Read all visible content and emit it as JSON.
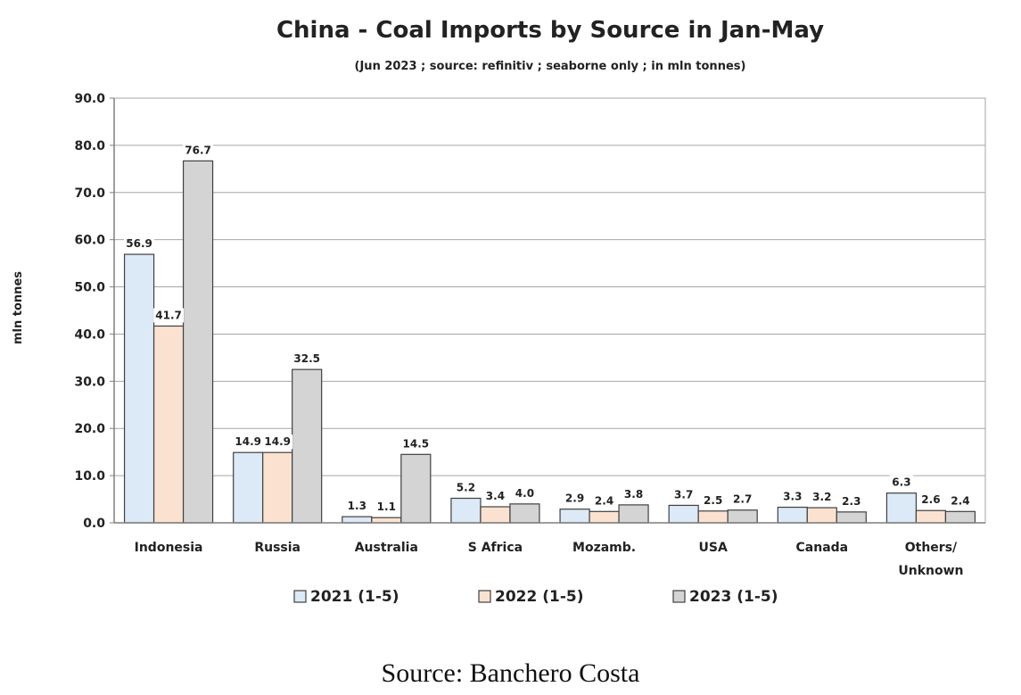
{
  "chart_data": {
    "type": "bar",
    "title": "China - Coal Imports by Source in Jan-May",
    "subtitle": "(Jun 2023 ; source: refinitiv ; seaborne only ; in mln tonnes)",
    "ylabel": "mln tonnes",
    "ylim": [
      0,
      90
    ],
    "yticks": [
      "0.0",
      "10.0",
      "20.0",
      "30.0",
      "40.0",
      "50.0",
      "60.0",
      "70.0",
      "80.0",
      "90.0"
    ],
    "grid": true,
    "legend_position": "bottom",
    "categories": [
      "Indonesia",
      "Russia",
      "Australia",
      "S Africa",
      "Mozamb.",
      "USA",
      "Canada",
      "Others/\nUnknown"
    ],
    "series": [
      {
        "name": "2021 (1-5)",
        "color": "#dce9f6",
        "values": [
          56.9,
          14.9,
          1.3,
          5.2,
          2.9,
          3.7,
          3.3,
          6.3
        ],
        "labels": [
          "56.9",
          "14.9",
          "1.3",
          "5.2",
          "2.9",
          "3.7",
          "3.3",
          "6.3"
        ]
      },
      {
        "name": "2022 (1-5)",
        "color": "#fbe2d0",
        "values": [
          41.7,
          14.9,
          1.1,
          3.4,
          2.4,
          2.5,
          3.2,
          2.6
        ],
        "labels": [
          "41.7",
          "14.9",
          "1.1",
          "3.4",
          "2.4",
          "2.5",
          "3.2",
          "2.6"
        ]
      },
      {
        "name": "2023 (1-5)",
        "color": "#d4d4d4",
        "values": [
          76.7,
          32.5,
          14.5,
          4.0,
          3.8,
          2.7,
          2.3,
          2.4
        ],
        "labels": [
          "76.7",
          "32.5",
          "14.5",
          "4.0",
          "3.8",
          "2.7",
          "2.3",
          "2.4"
        ]
      }
    ]
  },
  "source_caption": "Source: Banchero Costa"
}
